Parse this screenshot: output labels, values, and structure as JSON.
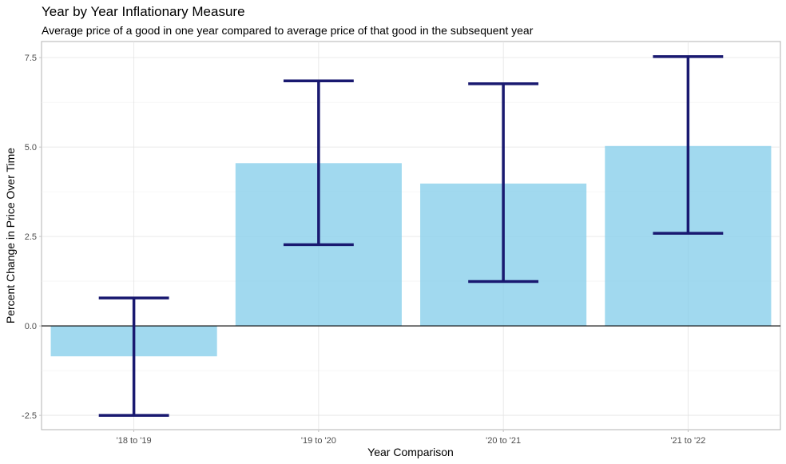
{
  "chart_data": {
    "type": "bar",
    "title": "Year by Year Inflationary Measure",
    "subtitle": "Average price of a good in one year compared to average price of that good in the subsequent year",
    "xlabel": "Year Comparison",
    "ylabel": "Percent Change in Price Over Time",
    "categories": [
      "'18 to '19",
      "'19 to '20",
      "'20 to '21",
      "'21 to '22"
    ],
    "values": [
      -0.85,
      4.55,
      3.98,
      5.03
    ],
    "error_lower": [
      -2.5,
      2.27,
      1.24,
      2.59
    ],
    "error_upper": [
      0.78,
      6.85,
      6.77,
      7.53
    ],
    "ylim": [
      -2.9,
      7.5
    ],
    "yticks": [
      -2.5,
      0.0,
      2.5,
      5.0,
      7.5
    ],
    "ytick_labels": [
      "-2.5",
      "0.0",
      "2.5",
      "5.0",
      "7.5"
    ],
    "grid": true,
    "colors": {
      "bar": "#87CEEB",
      "error_bar": "#191970",
      "zero_line": "#000000"
    }
  }
}
